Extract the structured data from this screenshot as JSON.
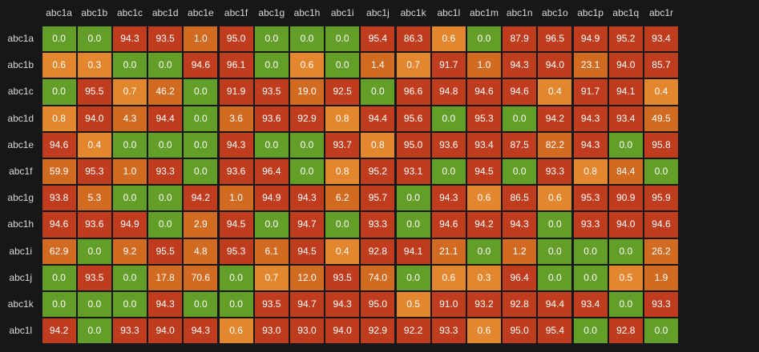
{
  "chart_data": {
    "type": "heatmap",
    "columns": [
      "abc1a",
      "abc1b",
      "abc1c",
      "abc1d",
      "abc1e",
      "abc1f",
      "abc1g",
      "abc1h",
      "abc1i",
      "abc1j",
      "abc1k",
      "abc1l",
      "abc1m",
      "abc1n",
      "abc1o",
      "abc1p",
      "abc1q",
      "abc1r"
    ],
    "rows": [
      "abc1a",
      "abc1b",
      "abc1c",
      "abc1d",
      "abc1e",
      "abc1f",
      "abc1g",
      "abc1h",
      "abc1i",
      "abc1j",
      "abc1k",
      "abc1l"
    ],
    "values": [
      [
        "0.0",
        "0.0",
        "94.3",
        "93.5",
        "1.0",
        "95.0",
        "0.0",
        "0.0",
        "0.0",
        "95.4",
        "86.3",
        "0.6",
        "0.0",
        "87.9",
        "96.5",
        "94.9",
        "95.2",
        "93.4"
      ],
      [
        "0.6",
        "0.3",
        "0.0",
        "0.0",
        "94.6",
        "96.1",
        "0.0",
        "0.6",
        "0.0",
        "1.4",
        "0.7",
        "91.7",
        "1.0",
        "94.3",
        "94.0",
        "23.1",
        "94.0",
        "85.7"
      ],
      [
        "0.0",
        "95.5",
        "0.7",
        "46.2",
        "0.0",
        "91.9",
        "93.5",
        "19.0",
        "92.5",
        "0.0",
        "96.6",
        "94.8",
        "94.6",
        "94.6",
        "0.4",
        "91.7",
        "94.1",
        "0.4"
      ],
      [
        "0.8",
        "94.0",
        "4.3",
        "94.4",
        "0.0",
        "3.6",
        "93.6",
        "92.9",
        "0.8",
        "94.4",
        "95.6",
        "0.0",
        "95.3",
        "0.0",
        "94.2",
        "94.3",
        "93.4",
        "49.5"
      ],
      [
        "94.6",
        "0.4",
        "0.0",
        "0.0",
        "0.0",
        "94.3",
        "0.0",
        "0.0",
        "93.7",
        "0.8",
        "95.0",
        "93.6",
        "93.4",
        "87.5",
        "82.2",
        "94.3",
        "0.0",
        "95.8"
      ],
      [
        "59.9",
        "95.3",
        "1.0",
        "93.3",
        "0.0",
        "93.6",
        "96.4",
        "0.0",
        "0.8",
        "95.2",
        "93.1",
        "0.0",
        "94.5",
        "0.0",
        "93.3",
        "0.8",
        "84.4",
        "0.0"
      ],
      [
        "93.8",
        "5.3",
        "0.0",
        "0.0",
        "94.2",
        "1.0",
        "94.9",
        "94.3",
        "6.2",
        "95.7",
        "0.0",
        "94.3",
        "0.6",
        "86.5",
        "0.6",
        "95.3",
        "90.9",
        "95.9"
      ],
      [
        "94.6",
        "93.6",
        "94.9",
        "0.0",
        "2.9",
        "94.5",
        "0.0",
        "94.7",
        "0.0",
        "93.3",
        "0.0",
        "94.6",
        "94.2",
        "94.3",
        "0.0",
        "93.3",
        "94.0",
        "94.6"
      ],
      [
        "62.9",
        "0.0",
        "9.2",
        "95.5",
        "4.8",
        "95.3",
        "6.1",
        "94.5",
        "0.4",
        "92.8",
        "94.1",
        "21.1",
        "0.0",
        "1.2",
        "0.0",
        "0.0",
        "0.0",
        "26.2"
      ],
      [
        "0.0",
        "93.5",
        "0.0",
        "17.8",
        "70.6",
        "0.0",
        "0.7",
        "12.0",
        "93.5",
        "74.0",
        "0.0",
        "0.6",
        "0.3",
        "96.4",
        "0.0",
        "0.0",
        "0.5",
        "1.9"
      ],
      [
        "0.0",
        "0.0",
        "0.0",
        "94.3",
        "0.0",
        "0.0",
        "93.5",
        "94.7",
        "94.3",
        "95.0",
        "0.5",
        "91.0",
        "93.2",
        "92.8",
        "94.4",
        "93.4",
        "0.0",
        "93.3"
      ],
      [
        "94.2",
        "0.0",
        "93.3",
        "94.0",
        "94.3",
        "0.6",
        "93.0",
        "93.0",
        "94.0",
        "92.9",
        "92.2",
        "93.3",
        "0.6",
        "95.0",
        "95.4",
        "0.0",
        "92.8",
        "0.0"
      ]
    ],
    "colors": {
      "zero": "#629e28",
      "low": "#e2872e",
      "mid": "#d26b22",
      "high": "#bf3d1e"
    }
  }
}
